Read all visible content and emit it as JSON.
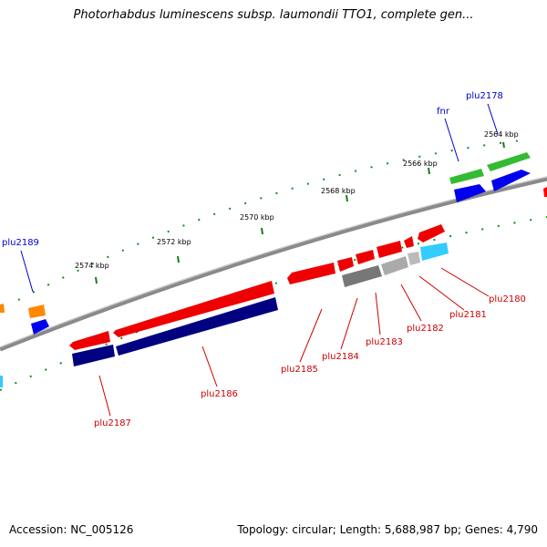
{
  "header": {
    "title": "Photorhabdus luminescens subsp. laumondii TTO1, complete gen..."
  },
  "footer": {
    "accession": "Accession: NC_005126",
    "stats": "Topology: circular; Length: 5,688,987 bp; Genes: 4,790"
  },
  "map": {
    "kbp_labels": [
      "2564 kbp",
      "2566 kbp",
      "2568 kbp",
      "2570 kbp",
      "2572 kbp",
      "2574 kbp"
    ],
    "gene_labels": {
      "plu2178": "plu2178",
      "fnr": "fnr",
      "plu2189": "plu2189",
      "plu2180": "plu2180",
      "plu2181": "plu2181",
      "plu2182": "plu2182",
      "plu2183": "plu2183",
      "plu2184": "plu2184",
      "plu2185": "plu2185",
      "plu2186": "plu2186",
      "plu2187": "plu2187"
    },
    "colors": {
      "backbone": "#808080",
      "forward_cds": "#ff0000",
      "reverse_cds": "#000080",
      "gc_green": "#33bb33",
      "blue_feature": "#0000ff",
      "cyan_feature": "#33ccff",
      "gray_feature": "#888888",
      "orange_feature": "#ff8800",
      "tick_green": "#007700"
    }
  }
}
